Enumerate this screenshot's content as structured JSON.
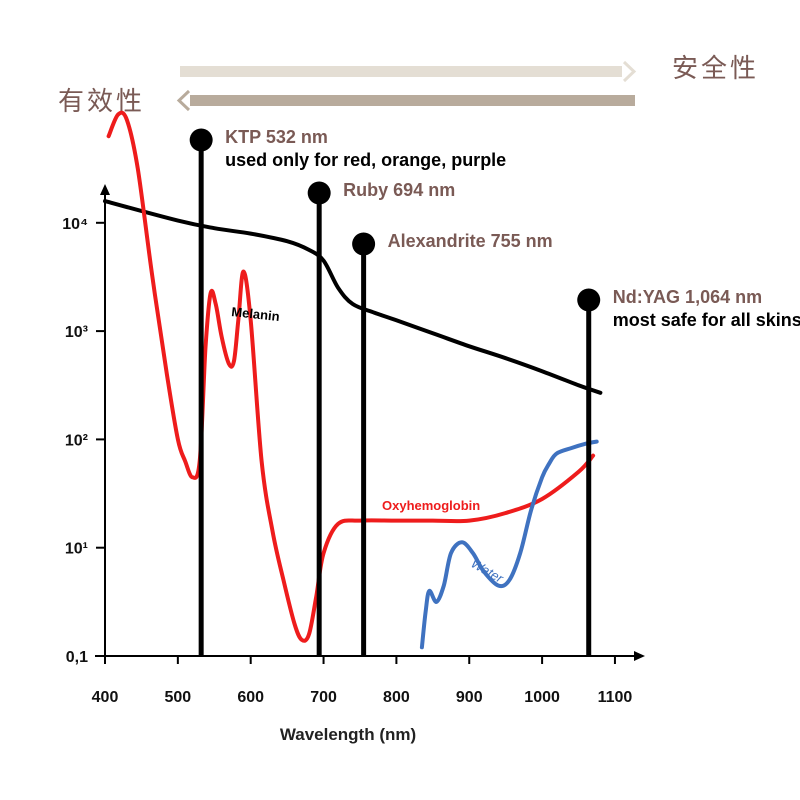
{
  "header": {
    "safety_label": "安全性",
    "effectiveness_label": "有效性"
  },
  "colors": {
    "accent_text": "#7a5a55",
    "arrow_light": "#e4ded4",
    "arrow_dark": "#b8ab9c",
    "oxyhemoglobin": "#ee1c1c",
    "melanin": "#000000",
    "water": "#3f72c0"
  },
  "chart_data": {
    "type": "line",
    "xlabel": "Wavelength (nm)",
    "ylabel": "",
    "x_ticks": [
      "400",
      "500",
      "600",
      "700",
      "800",
      "900",
      "1000",
      "1100"
    ],
    "y_ticks": [
      "0,1",
      "10¹",
      "10²",
      "10³",
      "10⁴"
    ],
    "xlim": [
      400,
      1140
    ],
    "ylim_log10": [
      -1,
      4.6
    ],
    "y_scale": "log",
    "grid": false,
    "series": [
      {
        "name": "Melanin",
        "color": "#000000",
        "x": [
          400,
          500,
          550,
          600,
          650,
          680,
          700,
          720,
          740,
          770,
          800,
          850,
          900,
          950,
          1000,
          1050,
          1080
        ],
        "y": [
          3.2,
          3.02,
          2.95,
          2.9,
          2.83,
          2.75,
          2.65,
          2.4,
          2.25,
          2.17,
          2.1,
          1.98,
          1.86,
          1.75,
          1.63,
          1.5,
          1.43
        ]
      },
      {
        "name": "Oxyhemoglobin",
        "color": "#ee1c1c",
        "x": [
          405,
          418,
          430,
          445,
          465,
          485,
          500,
          510,
          520,
          530,
          538,
          545,
          552,
          560,
          570,
          577,
          583,
          590,
          600,
          615,
          630,
          645,
          660,
          670,
          680,
          690,
          700,
          720,
          750,
          800,
          850,
          900,
          950,
          1000,
          1050,
          1070
        ],
        "y": [
          3.8,
          4.0,
          3.95,
          3.5,
          2.5,
          1.6,
          1.0,
          0.8,
          0.65,
          0.8,
          1.85,
          2.35,
          2.25,
          1.95,
          1.7,
          1.72,
          2.1,
          2.55,
          2.1,
          0.8,
          0.15,
          -0.3,
          -0.7,
          -0.85,
          -0.8,
          -0.45,
          -0.05,
          0.22,
          0.25,
          0.25,
          0.25,
          0.25,
          0.32,
          0.45,
          0.7,
          0.85
        ]
      },
      {
        "name": "Water",
        "color": "#3f72c0",
        "x": [
          835,
          840,
          845,
          855,
          865,
          875,
          890,
          905,
          920,
          940,
          955,
          970,
          985,
          1000,
          1010,
          1020,
          1040,
          1060,
          1075
        ],
        "y": [
          -0.92,
          -0.6,
          -0.4,
          -0.5,
          -0.35,
          -0.05,
          0.05,
          -0.05,
          -0.22,
          -0.35,
          -0.3,
          -0.05,
          0.35,
          0.65,
          0.78,
          0.87,
          0.92,
          0.96,
          0.98
        ]
      }
    ],
    "series_labels": [
      "Melanin",
      "Oxyhemoglobin",
      "Water"
    ],
    "lasers": [
      {
        "wavelength": 532,
        "name": "KTP 532 nm",
        "note": "used only for red, orange, purple"
      },
      {
        "wavelength": 694,
        "name": "Ruby 694 nm",
        "note": ""
      },
      {
        "wavelength": 755,
        "name": "Alexandrite 755 nm",
        "note": ""
      },
      {
        "wavelength": 1064,
        "name": "Nd:YAG 1,064 nm",
        "note": "most safe for all skins"
      }
    ]
  }
}
